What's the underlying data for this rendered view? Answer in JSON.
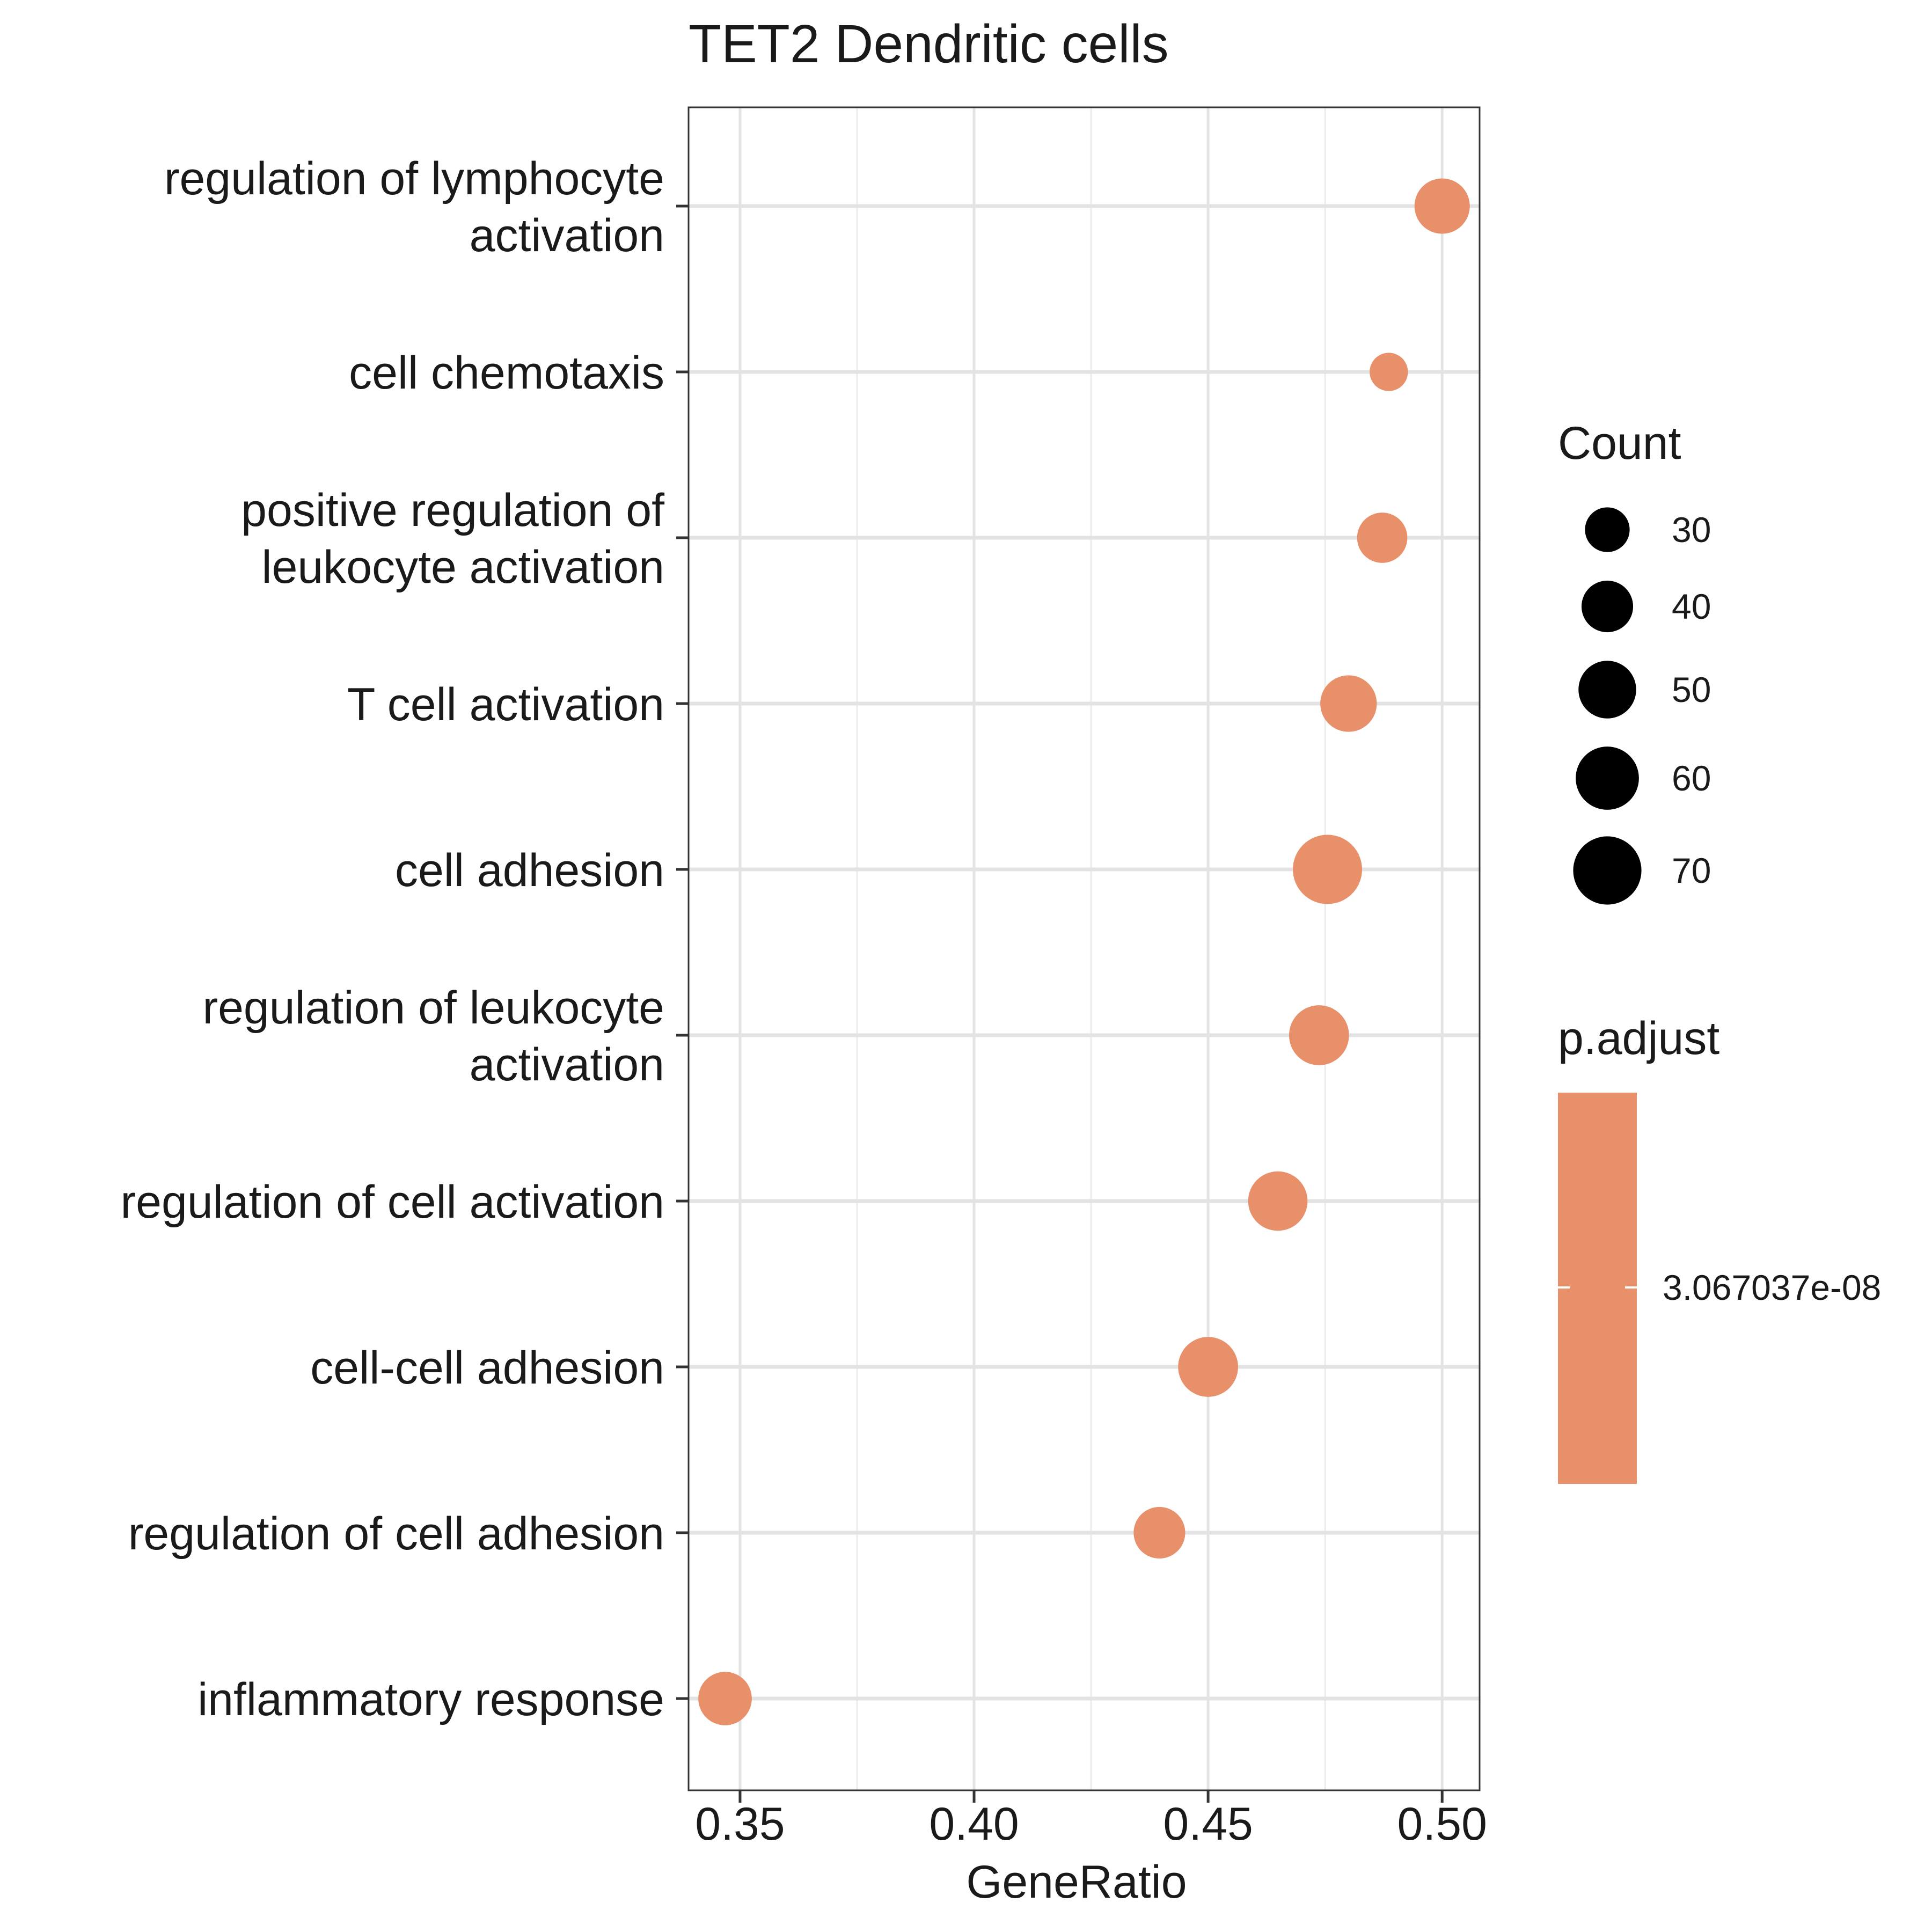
{
  "chart_data": {
    "type": "scatter",
    "title": "TET2 Dendritic cells",
    "xlabel": "GeneRatio",
    "ylabel": "",
    "xlim": [
      0.339,
      0.508
    ],
    "x_ticks": [
      0.35,
      0.4,
      0.45,
      0.5
    ],
    "x_tick_labels": [
      "0.35",
      "0.40",
      "0.45",
      "0.50"
    ],
    "x_grid_minor": [
      0.375,
      0.425,
      0.475
    ],
    "grid": true,
    "point_color": "#E8906A",
    "categories": [
      {
        "label": [
          "regulation of lymphocyte",
          "activation"
        ],
        "gene_ratio": 0.5,
        "count": 46
      },
      {
        "label": [
          "cell chemotaxis"
        ],
        "gene_ratio": 0.4886,
        "count": 22
      },
      {
        "label": [
          "positive regulation of",
          "leukocyte activation"
        ],
        "gene_ratio": 0.4872,
        "count": 38
      },
      {
        "label": [
          "T cell activation"
        ],
        "gene_ratio": 0.48,
        "count": 48
      },
      {
        "label": [
          "cell adhesion"
        ],
        "gene_ratio": 0.4755,
        "count": 72
      },
      {
        "label": [
          "regulation of leukocyte",
          "activation"
        ],
        "gene_ratio": 0.4737,
        "count": 54
      },
      {
        "label": [
          "regulation of cell activation"
        ],
        "gene_ratio": 0.4649,
        "count": 53
      },
      {
        "label": [
          "cell-cell adhesion"
        ],
        "gene_ratio": 0.45,
        "count": 54
      },
      {
        "label": [
          "regulation of cell adhesion"
        ],
        "gene_ratio": 0.4396,
        "count": 40
      },
      {
        "label": [
          "inflammatory response"
        ],
        "gene_ratio": 0.3468,
        "count": 43
      }
    ],
    "legend": {
      "placement": "right",
      "count_title": "Count",
      "count_breaks": [
        30,
        40,
        50,
        60,
        70
      ],
      "count_break_labels": [
        "30",
        "40",
        "50",
        "60",
        "70"
      ],
      "padjust_title": "p.adjust",
      "padjust_label": "3.067037e-08",
      "padjust_color": "#E8906A"
    }
  }
}
